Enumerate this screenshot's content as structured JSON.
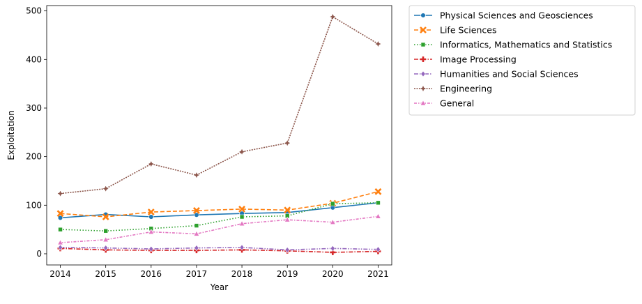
{
  "chart_data": {
    "type": "line",
    "title": "",
    "xlabel": "Year",
    "ylabel": "Exploitation",
    "x": [
      2014,
      2015,
      2016,
      2017,
      2018,
      2019,
      2020,
      2021
    ],
    "xlim": [
      2013.7,
      2021.3
    ],
    "ylim": [
      -23,
      511
    ],
    "yticks": [
      0,
      100,
      200,
      300,
      400,
      500
    ],
    "grid": false,
    "legend_position": "outside-upper-right",
    "series": [
      {
        "name": "Physical Sciences and Geosciences",
        "color": "#1f77b4",
        "dash": "solid",
        "marker": "circle",
        "values": [
          74,
          81,
          76,
          80,
          83,
          85,
          95,
          105
        ]
      },
      {
        "name": "Life Sciences",
        "color": "#ff7f0e",
        "dash": "dashed",
        "marker": "x",
        "values": [
          83,
          76,
          86,
          89,
          92,
          90,
          104,
          128
        ]
      },
      {
        "name": "Informatics, Mathematics and Statistics",
        "color": "#2ca02c",
        "dash": "dotted",
        "marker": "square",
        "values": [
          50,
          47,
          52,
          58,
          76,
          78,
          103,
          105
        ]
      },
      {
        "name": "Image Processing",
        "color": "#d62728",
        "dash": "dashdot",
        "marker": "plus",
        "values": [
          11,
          8,
          7,
          7,
          8,
          6,
          3,
          5
        ]
      },
      {
        "name": "Humanities and Social Sciences",
        "color": "#9467bd",
        "dash": "dashdotdot",
        "marker": "diamond",
        "values": [
          13,
          12,
          10,
          12,
          13,
          8,
          11,
          9
        ]
      },
      {
        "name": "Engineering",
        "color": "#8c564b",
        "dash": "densedot",
        "marker": "star",
        "values": [
          124,
          134,
          185,
          162,
          210,
          228,
          488,
          432
        ]
      },
      {
        "name": "General",
        "color": "#e377c2",
        "dash": "dashdot2",
        "marker": "triangle",
        "values": [
          23,
          29,
          45,
          41,
          62,
          70,
          65,
          77
        ]
      }
    ]
  }
}
